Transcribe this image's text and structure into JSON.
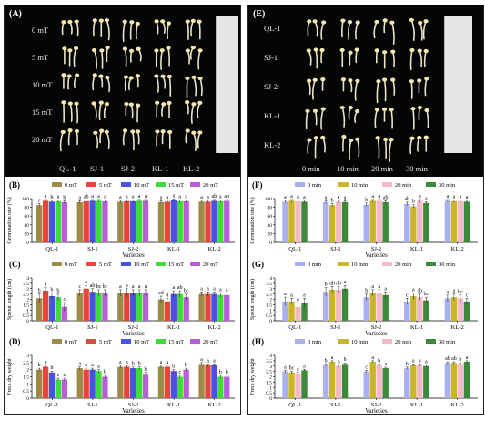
{
  "panels": {
    "A": {
      "tag": "(A)",
      "rows": [
        "0 mT",
        "5 mT",
        "10 mT",
        "15 mT",
        "20 mT"
      ],
      "cols": [
        "QL-1",
        "SJ-1",
        "SJ-2",
        "KL-1",
        "KL-2"
      ]
    },
    "E": {
      "tag": "(E)",
      "rows": [
        "QL-1",
        "SJ-1",
        "SJ-2",
        "KL-1",
        "KL-2"
      ],
      "cols": [
        "0 min",
        "10 min",
        "20 min",
        "30 min"
      ]
    }
  },
  "colors": {
    "mT": [
      "#9c8a47",
      "#e8443c",
      "#4a52e0",
      "#3ddc3a",
      "#b85fd8"
    ],
    "min": [
      "#a9b0ee",
      "#c9b52a",
      "#f4b8c8",
      "#3a8a3a"
    ]
  },
  "chart_data": [
    {
      "id": "B",
      "tag": "(B)",
      "type": "bar",
      "categories": [
        "QL-1",
        "SJ-1",
        "SJ-2",
        "KL-1",
        "KL-2"
      ],
      "series": [
        {
          "name": "0 mT",
          "values": [
            85,
            92,
            93,
            92,
            93
          ],
          "err": [
            4,
            3,
            3,
            3,
            3
          ],
          "letters": [
            "c",
            "a",
            "a",
            "a",
            "a"
          ]
        },
        {
          "name": "5 mT",
          "values": [
            95,
            94,
            94,
            93,
            93
          ],
          "err": [
            3,
            3,
            3,
            3,
            3
          ],
          "letters": [
            "a",
            "ab",
            "a",
            "a",
            "a"
          ]
        },
        {
          "name": "10 mT",
          "values": [
            93,
            95,
            94,
            96,
            95
          ],
          "err": [
            3,
            3,
            3,
            3,
            3
          ],
          "letters": [
            "b",
            "a",
            "a",
            "a",
            "ab"
          ]
        },
        {
          "name": "15 mT",
          "values": [
            94,
            95,
            95,
            94,
            94
          ],
          "err": [
            3,
            3,
            3,
            3,
            3
          ],
          "letters": [
            "a",
            "a",
            "a",
            "a",
            "a"
          ]
        },
        {
          "name": "20 mT",
          "values": [
            92,
            94,
            95,
            94,
            95
          ],
          "err": [
            3,
            3,
            3,
            3,
            3
          ],
          "letters": [
            "b",
            "a",
            "a",
            "a",
            "ab"
          ]
        }
      ],
      "xlabel": "Varieties",
      "ylabel": "Germination rate (%)",
      "ylim": [
        0,
        100
      ],
      "yticks": [
        0,
        20,
        40,
        60,
        80,
        100
      ],
      "legend": "top"
    },
    {
      "id": "C",
      "tag": "(C)",
      "type": "bar",
      "categories": [
        "QL-1",
        "SJ-1",
        "SJ-2",
        "KL-1",
        "KL-2"
      ],
      "series": [
        {
          "name": "0 mT",
          "values": [
            2.1,
            2.6,
            2.6,
            2.0,
            2.5
          ],
          "err": [
            0.4,
            0.3,
            0.3,
            0.3,
            0.2
          ],
          "letters": [
            "b",
            "c",
            "a",
            "cd",
            "a"
          ]
        },
        {
          "name": "5 mT",
          "values": [
            2.8,
            3.0,
            2.6,
            1.8,
            2.5
          ],
          "err": [
            0.3,
            0.3,
            0.4,
            0.3,
            0.2
          ],
          "letters": [
            "a",
            "a",
            "a",
            "d",
            "a"
          ]
        },
        {
          "name": "10 mT",
          "values": [
            2.3,
            2.7,
            2.6,
            2.5,
            2.5
          ],
          "err": [
            0.3,
            0.3,
            0.3,
            0.3,
            0.2
          ],
          "letters": [
            "b",
            "ab",
            "a",
            "a",
            "a"
          ]
        },
        {
          "name": "15 mT",
          "values": [
            2.2,
            2.6,
            2.6,
            2.5,
            2.4
          ],
          "err": [
            0.3,
            0.3,
            0.3,
            0.3,
            0.2
          ],
          "letters": [
            "b",
            "bc",
            "a",
            "ab",
            "a"
          ]
        },
        {
          "name": "20 mT",
          "values": [
            1.3,
            2.6,
            2.6,
            2.2,
            2.4
          ],
          "err": [
            0.4,
            0.3,
            0.3,
            0.3,
            0.2
          ],
          "letters": [
            "c",
            "bc",
            "a",
            "bc",
            "a"
          ]
        }
      ],
      "xlabel": "Varieties",
      "ylabel": "Sprout length (cm)",
      "ylim": [
        0,
        4.0
      ],
      "yticks": [
        0,
        0.5,
        1.0,
        1.5,
        2.0,
        2.5,
        3.0,
        3.5,
        4.0
      ],
      "legend": "top"
    },
    {
      "id": "D",
      "tag": "(D)",
      "type": "bar",
      "categories": [
        "QL-1",
        "SJ-1",
        "SJ-2",
        "KL-1",
        "KL-2"
      ],
      "series": [
        {
          "name": "0 mT",
          "values": [
            2.0,
            2.1,
            2.2,
            2.2,
            2.4
          ],
          "err": [
            0.1,
            0.1,
            0.1,
            0.1,
            0.1
          ],
          "letters": [
            "b",
            "a",
            "a",
            "a",
            "a"
          ]
        },
        {
          "name": "5 mT",
          "values": [
            2.2,
            2.0,
            2.2,
            2.2,
            2.3
          ],
          "err": [
            0.1,
            0.1,
            0.1,
            0.1,
            0.1
          ],
          "letters": [
            "a",
            "a",
            "a",
            "a",
            "a"
          ]
        },
        {
          "name": "10 mT",
          "values": [
            1.8,
            2.0,
            2.1,
            1.9,
            2.3
          ],
          "err": [
            0.1,
            0.1,
            0.1,
            0.1,
            0.1
          ],
          "letters": [
            "b",
            "a",
            "b",
            "b",
            "a"
          ]
        },
        {
          "name": "15 mT",
          "values": [
            1.3,
            1.9,
            2.1,
            1.5,
            1.5
          ],
          "err": [
            0.1,
            0.1,
            0.1,
            0.1,
            0.1
          ],
          "letters": [
            "c",
            "a",
            "b",
            "c",
            "b"
          ]
        },
        {
          "name": "20 mT",
          "values": [
            1.3,
            1.5,
            1.7,
            2.0,
            1.5
          ],
          "err": [
            0.1,
            0.1,
            0.1,
            0.1,
            0.1
          ],
          "letters": [
            "c",
            "b",
            "b",
            "b",
            "b"
          ]
        }
      ],
      "xlabel": "Varieties",
      "ylabel": "Fresh dry weight",
      "ylim": [
        0,
        3.0
      ],
      "yticks": [
        0,
        0.5,
        1.0,
        1.5,
        2.0,
        2.5,
        3.0
      ],
      "legend": "top"
    },
    {
      "id": "F",
      "tag": "(F)",
      "type": "bar",
      "categories": [
        "QL-1",
        "SJ-1",
        "SJ-2",
        "KL-1",
        "KL-2"
      ],
      "series": [
        {
          "name": "0 min",
          "values": [
            93,
            92,
            86,
            88,
            95
          ],
          "err": [
            3,
            3,
            4,
            4,
            3
          ],
          "letters": [
            "a",
            "a",
            "b",
            "ab",
            "a"
          ]
        },
        {
          "name": "10 min",
          "values": [
            95,
            85,
            95,
            82,
            94
          ],
          "err": [
            3,
            4,
            3,
            4,
            3
          ],
          "letters": [
            "a",
            "b",
            "a",
            "b",
            "a"
          ]
        },
        {
          "name": "20 min",
          "values": [
            94,
            93,
            95,
            95,
            94
          ],
          "err": [
            3,
            3,
            3,
            3,
            3
          ],
          "letters": [
            "a",
            "a",
            "a",
            "a",
            "a"
          ]
        },
        {
          "name": "30 min",
          "values": [
            93,
            92,
            92,
            90,
            93
          ],
          "err": [
            3,
            3,
            3,
            3,
            3
          ],
          "letters": [
            "a",
            "a",
            "ab",
            "a",
            "a"
          ]
        }
      ],
      "xlabel": "Varieties",
      "ylabel": "Germination rate (%)",
      "ylim": [
        0,
        100
      ],
      "yticks": [
        0,
        20,
        40,
        60,
        80,
        100
      ],
      "legend": "top"
    },
    {
      "id": "G",
      "tag": "(G)",
      "type": "bar",
      "categories": [
        "QL-1",
        "SJ-1",
        "SJ-2",
        "KL-1",
        "KL-2"
      ],
      "series": [
        {
          "name": "0 min",
          "values": [
            1.8,
            2.7,
            2.2,
            1.8,
            2.1
          ],
          "err": [
            0.4,
            0.4,
            0.3,
            0.3,
            0.3
          ],
          "letters": [
            "a",
            "b",
            "b",
            "c",
            "a"
          ]
        },
        {
          "name": "10 min",
          "values": [
            1.8,
            2.9,
            2.6,
            2.3,
            2.2
          ],
          "err": [
            0.3,
            0.3,
            0.3,
            0.3,
            0.3
          ],
          "letters": [
            "a",
            "ab",
            "a",
            "a",
            "a"
          ]
        },
        {
          "name": "20 min",
          "values": [
            1.3,
            2.9,
            2.6,
            2.2,
            2.1
          ],
          "err": [
            0.4,
            0.3,
            0.3,
            0.3,
            0.3
          ],
          "letters": [
            "a",
            "ab",
            "a",
            "ab",
            "bc"
          ]
        },
        {
          "name": "30 min",
          "values": [
            1.7,
            3.0,
            2.4,
            1.9,
            1.8
          ],
          "err": [
            0.4,
            0.3,
            0.3,
            0.3,
            0.3
          ],
          "letters": [
            "a",
            "a",
            "a",
            "bc",
            "c"
          ]
        }
      ],
      "xlabel": "Varieties",
      "ylabel": "Sprout length (cm)",
      "ylim": [
        0,
        4.0
      ],
      "yticks": [
        0,
        0.5,
        1.0,
        1.5,
        2.0,
        2.5,
        3.0,
        3.5,
        4.0
      ],
      "legend": "top"
    },
    {
      "id": "H",
      "tag": "(H)",
      "type": "bar",
      "categories": [
        "QL-1",
        "SJ-1",
        "SJ-2",
        "KL-1",
        "KL-2"
      ],
      "series": [
        {
          "name": "0 min",
          "values": [
            2.5,
            3.1,
            2.5,
            2.8,
            3.3
          ],
          "err": [
            0.1,
            0.1,
            0.1,
            0.1,
            0.1
          ],
          "letters": [
            "a",
            "b",
            "c",
            "b",
            "ab"
          ]
        },
        {
          "name": "10 min",
          "values": [
            2.4,
            3.4,
            3.4,
            3.1,
            3.3
          ],
          "err": [
            0.1,
            0.1,
            0.1,
            0.1,
            0.1
          ],
          "letters": [
            "bc",
            "a",
            "a",
            "a",
            "ab"
          ]
        },
        {
          "name": "20 min",
          "values": [
            2.3,
            3.0,
            3.1,
            3.1,
            3.2
          ],
          "err": [
            0.1,
            0.1,
            0.1,
            0.1,
            0.1
          ],
          "letters": [
            "c",
            "b",
            "b",
            "a",
            "b"
          ]
        },
        {
          "name": "30 min",
          "values": [
            2.6,
            3.2,
            2.8,
            3.0,
            3.4
          ],
          "err": [
            0.1,
            0.1,
            0.1,
            0.1,
            0.1
          ],
          "letters": [
            "a",
            "b",
            "a",
            "a",
            "a"
          ]
        }
      ],
      "xlabel": "Varieties",
      "ylabel": "Fresh dry weight",
      "ylim": [
        0,
        4.0
      ],
      "yticks": [
        0,
        0.5,
        1.0,
        1.5,
        2.0,
        2.5,
        3.0,
        3.5,
        4.0
      ],
      "legend": "top"
    }
  ]
}
